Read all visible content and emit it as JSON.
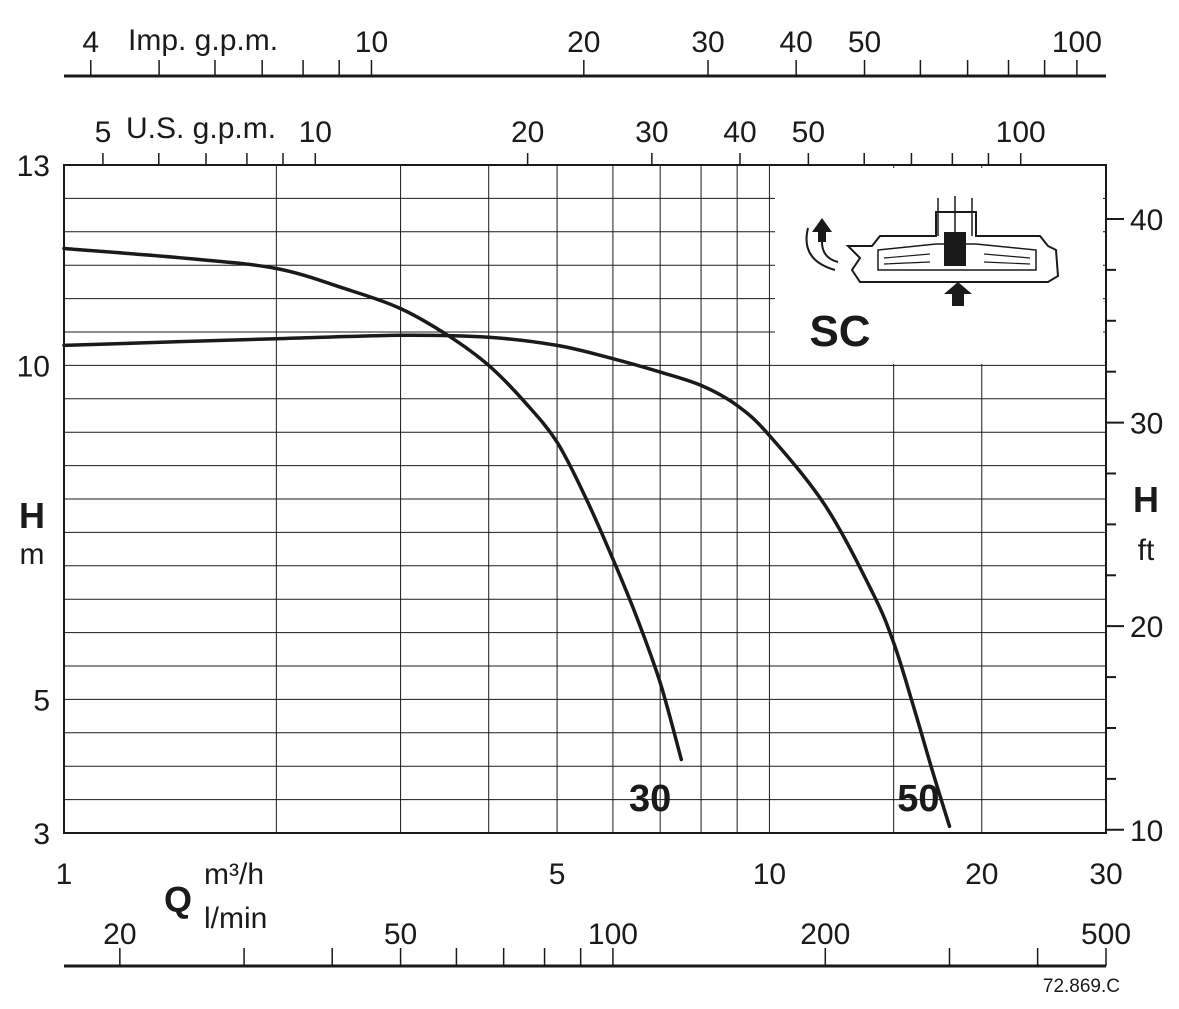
{
  "chart_data": {
    "type": "line",
    "title": "SC",
    "code": "72.869.C",
    "x_scale": "log",
    "y_scale": "linear",
    "xlim": [
      1,
      30
    ],
    "ylim": [
      3,
      13
    ],
    "axes": {
      "q_m3h": {
        "symbol": "Q",
        "unit": "m³/h",
        "ticks": [
          "1",
          "5",
          "10",
          "20",
          "30"
        ]
      },
      "q_lmin": {
        "unit": "l/min",
        "ticks": [
          "20",
          "50",
          "100",
          "200",
          "500"
        ]
      },
      "q_imp": {
        "label": "Imp. g.p.m.",
        "ticks": [
          "4",
          "10",
          "20",
          "30",
          "40",
          "50",
          "100"
        ]
      },
      "q_us": {
        "label": "U.S. g.p.m.",
        "ticks": [
          "5",
          "10",
          "20",
          "30",
          "40",
          "50",
          "100"
        ]
      },
      "h_m": {
        "symbol": "H",
        "unit": "m",
        "ticks": [
          "3",
          "5",
          "10",
          "13"
        ]
      },
      "h_ft": {
        "symbol": "H",
        "unit": "ft",
        "ticks": [
          "10",
          "20",
          "30",
          "40"
        ]
      }
    },
    "grid": true,
    "series": [
      {
        "name": "30",
        "points": [
          [
            1,
            11.75
          ],
          [
            1.5,
            11.6
          ],
          [
            2,
            11.45
          ],
          [
            2.5,
            11.15
          ],
          [
            3,
            10.85
          ],
          [
            3.5,
            10.45
          ],
          [
            4,
            10.0
          ],
          [
            4.5,
            9.45
          ],
          [
            5,
            8.85
          ],
          [
            5.5,
            8.0
          ],
          [
            6,
            7.1
          ],
          [
            6.5,
            6.2
          ],
          [
            7,
            5.25
          ],
          [
            7.5,
            4.1
          ]
        ]
      },
      {
        "name": "50",
        "points": [
          [
            1,
            10.3
          ],
          [
            2,
            10.4
          ],
          [
            3,
            10.45
          ],
          [
            4,
            10.42
          ],
          [
            5,
            10.3
          ],
          [
            6,
            10.1
          ],
          [
            7,
            9.9
          ],
          [
            8,
            9.7
          ],
          [
            9,
            9.4
          ],
          [
            10,
            8.95
          ],
          [
            12,
            7.9
          ],
          [
            14,
            6.6
          ],
          [
            15,
            5.85
          ],
          [
            16,
            4.9
          ],
          [
            17,
            3.95
          ],
          [
            18,
            3.1
          ]
        ]
      }
    ]
  }
}
